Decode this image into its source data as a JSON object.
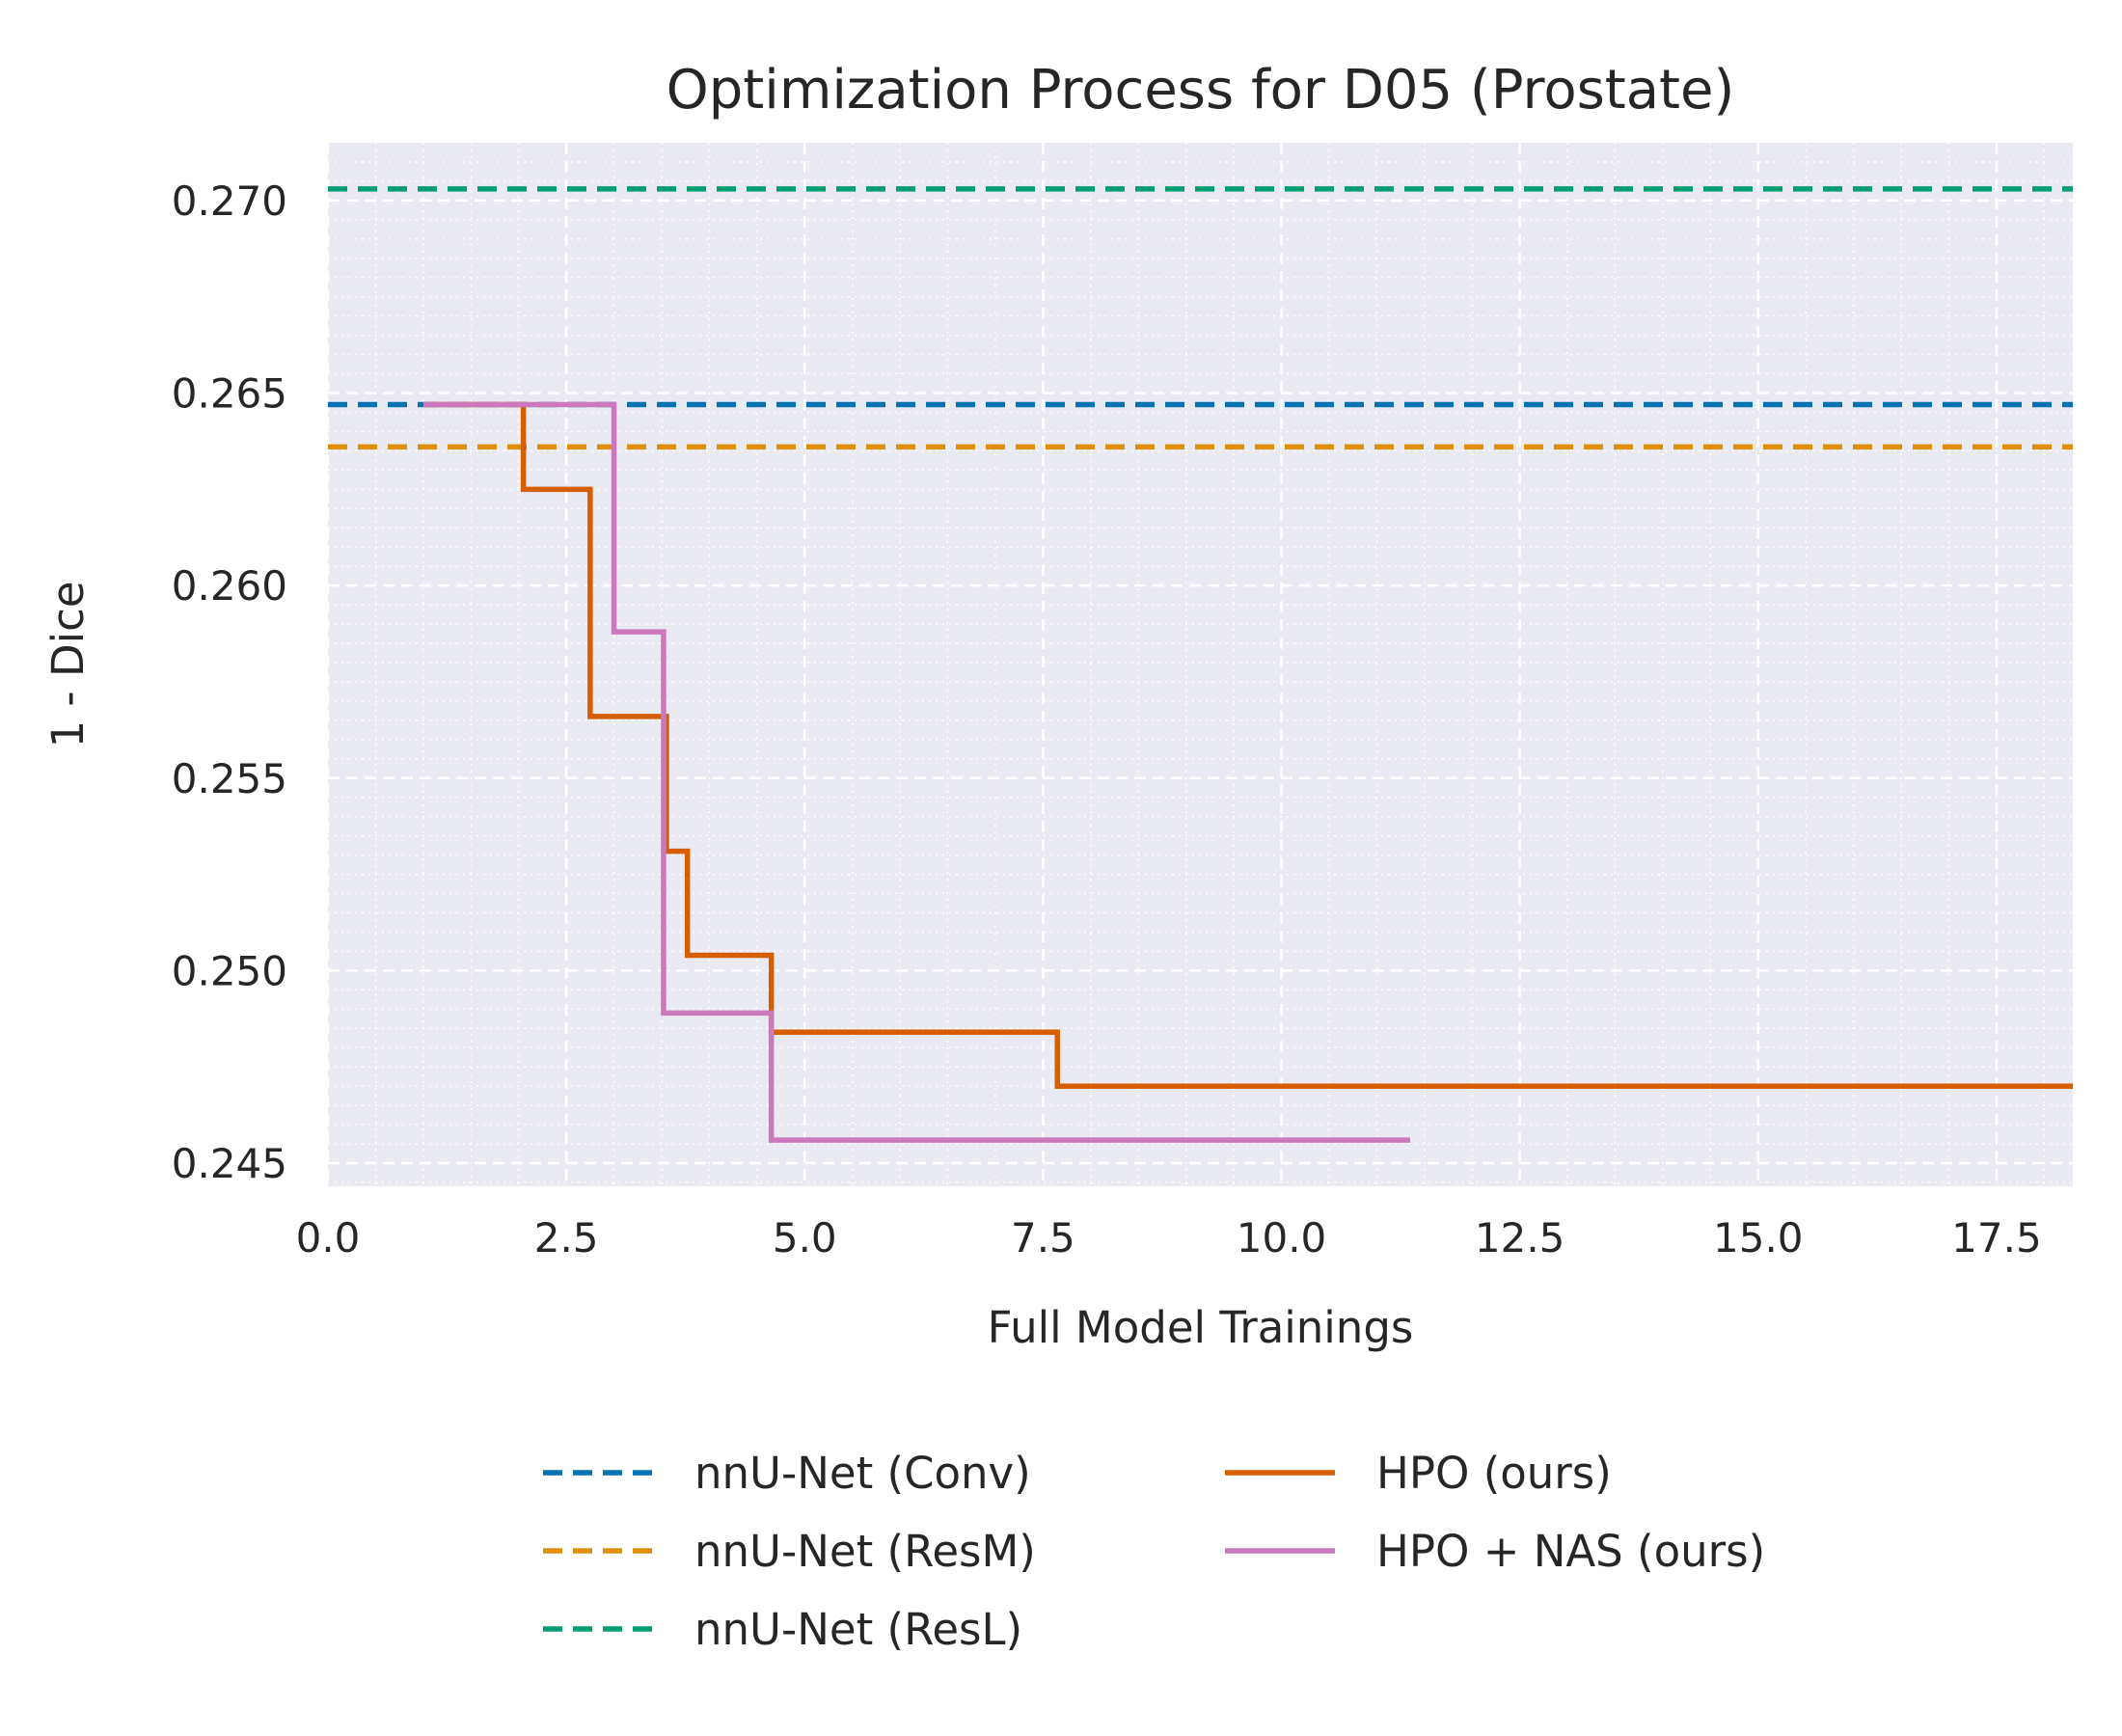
{
  "chart_data": {
    "type": "line",
    "title": "Optimization Process for D05 (Prostate)",
    "xlabel": "Full Model Trainings",
    "ylabel": "1 - Dice",
    "xlim": [
      0.0,
      18.3
    ],
    "ylim": [
      0.2444,
      0.2715
    ],
    "x_ticks": [
      0.0,
      2.5,
      5.0,
      7.5,
      10.0,
      12.5,
      15.0,
      17.5
    ],
    "x_tick_labels": [
      "0.0",
      "2.5",
      "5.0",
      "7.5",
      "10.0",
      "12.5",
      "15.0",
      "17.5"
    ],
    "y_ticks": [
      0.245,
      0.25,
      0.255,
      0.26,
      0.265,
      0.27
    ],
    "y_tick_labels": [
      "0.245",
      "0.250",
      "0.255",
      "0.260",
      "0.265",
      "0.270"
    ],
    "grid": true,
    "minor_grid": true,
    "background": "#eaeaf2",
    "legend_position": "below plot, two columns",
    "baselines": [
      {
        "name": "nnU-Net (Conv)",
        "y": 0.2647,
        "color": "#0173b2",
        "style": "dashed"
      },
      {
        "name": "nnU-Net (ResM)",
        "y": 0.2636,
        "color": "#de8f05",
        "style": "dashed"
      },
      {
        "name": "nnU-Net (ResL)",
        "y": 0.2703,
        "color": "#029e73",
        "style": "dashed"
      }
    ],
    "series": [
      {
        "name": "HPO (ours)",
        "color": "#d55e00",
        "style": "step",
        "x": [
          1.0,
          2.05,
          2.75,
          3.55,
          3.77,
          4.65,
          7.65,
          18.3
        ],
        "y": [
          0.2647,
          0.2625,
          0.2566,
          0.2531,
          0.2504,
          0.2484,
          0.247,
          0.247
        ]
      },
      {
        "name": "HPO + NAS (ours)",
        "color": "#cc78bc",
        "style": "step",
        "x": [
          1.0,
          3.0,
          3.52,
          4.65,
          11.35
        ],
        "y": [
          0.2647,
          0.2588,
          0.2489,
          0.2456,
          0.2456
        ]
      }
    ]
  }
}
